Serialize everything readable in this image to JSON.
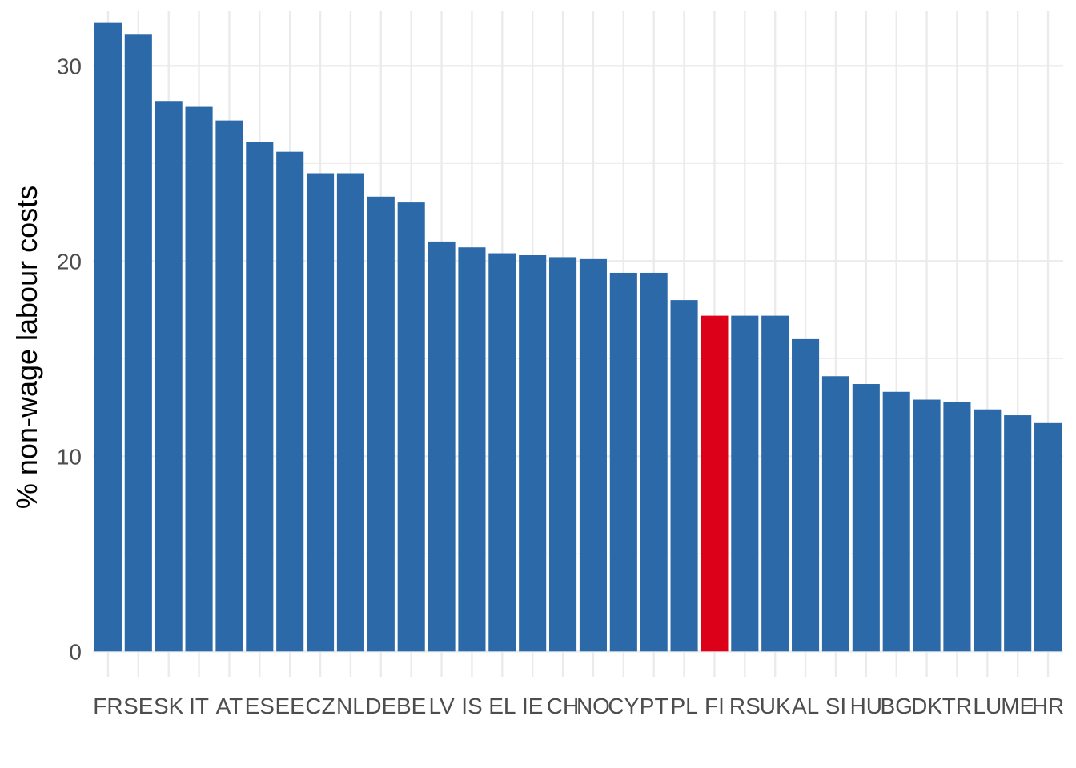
{
  "chart_data": {
    "type": "bar",
    "xlabel": "",
    "ylabel": "% non-wage labour costs",
    "ylim": [
      -1.3,
      32.8
    ],
    "yticks": [
      0,
      10,
      20,
      30
    ],
    "grid": true,
    "legend": "none",
    "categories": [
      "FR",
      "SE",
      "SK",
      "IT",
      "AT",
      "ES",
      "EE",
      "CZ",
      "NL",
      "DE",
      "BE",
      "LV",
      "IS",
      "EL",
      "IE",
      "CH",
      "NO",
      "CY",
      "PT",
      "PL",
      "FI",
      "RS",
      "UK",
      "AL",
      "SI",
      "HU",
      "BG",
      "DK",
      "TR",
      "LU",
      "ME",
      "HR"
    ],
    "values": [
      32.2,
      31.6,
      28.2,
      27.9,
      27.2,
      26.1,
      25.6,
      24.5,
      24.5,
      23.3,
      23.0,
      21.0,
      20.7,
      20.4,
      20.3,
      20.2,
      20.1,
      19.4,
      19.4,
      18.0,
      17.2,
      17.2,
      17.2,
      16.0,
      14.1,
      13.7,
      13.3,
      12.9,
      12.8,
      12.4,
      12.1,
      11.7
    ],
    "highlight": "FI",
    "colors": {
      "bar": "#2b69a8",
      "highlight": "#dc0019",
      "grid": "#ebebeb"
    }
  }
}
